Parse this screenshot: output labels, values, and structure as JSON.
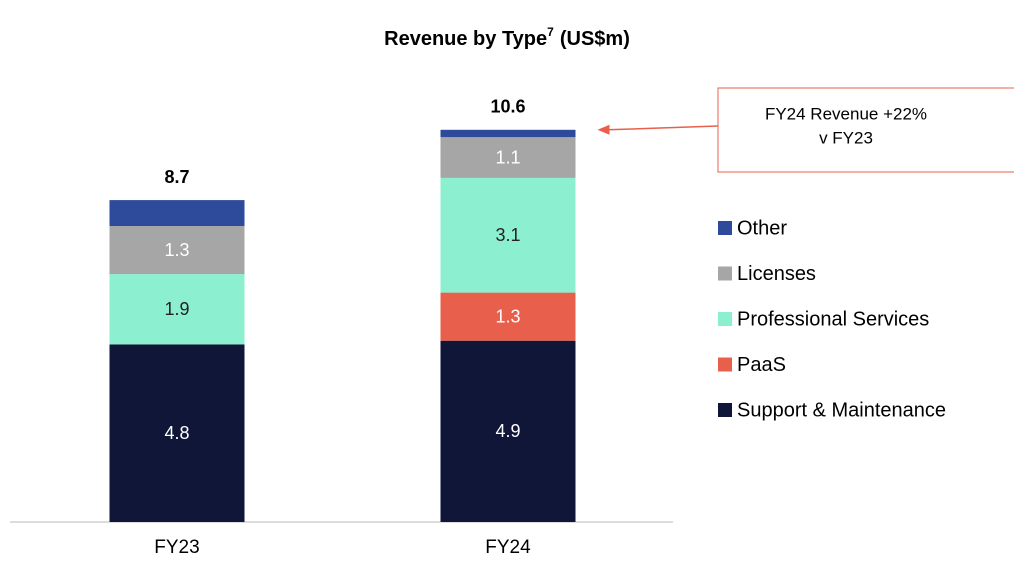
{
  "chart_data": {
    "type": "stacked_bar",
    "title": "Revenue by Type",
    "title_footnote": "7",
    "title_unit": "(US$m)",
    "categories": [
      "FY23",
      "FY24"
    ],
    "series": [
      {
        "name": "Support & Maintenance",
        "color": "#0f1638",
        "label_color": "#ffffff",
        "show_labels": true,
        "values": [
          4.8,
          4.9
        ]
      },
      {
        "name": "PaaS",
        "color": "#e8604c",
        "label_color": "#ffffff",
        "show_labels": true,
        "values": [
          null,
          1.3
        ]
      },
      {
        "name": "Professional Services",
        "color": "#8cf0d0",
        "label_color": "#222222",
        "show_labels": true,
        "values": [
          1.9,
          3.1
        ]
      },
      {
        "name": "Licenses",
        "color": "#a6a6a6",
        "label_color": "#ffffff",
        "show_labels": true,
        "values": [
          1.3,
          1.1
        ]
      },
      {
        "name": "Other",
        "color": "#2e4b9b",
        "label_color": "#ffffff",
        "show_labels": false,
        "values": [
          0.7,
          0.2
        ]
      }
    ],
    "totals": [
      8.7,
      10.6
    ],
    "ylim": [
      0,
      14
    ],
    "annotation": {
      "lines": [
        "FY24 Revenue +22%",
        "v FY23"
      ],
      "color": "#e8604c",
      "target": 1
    }
  }
}
